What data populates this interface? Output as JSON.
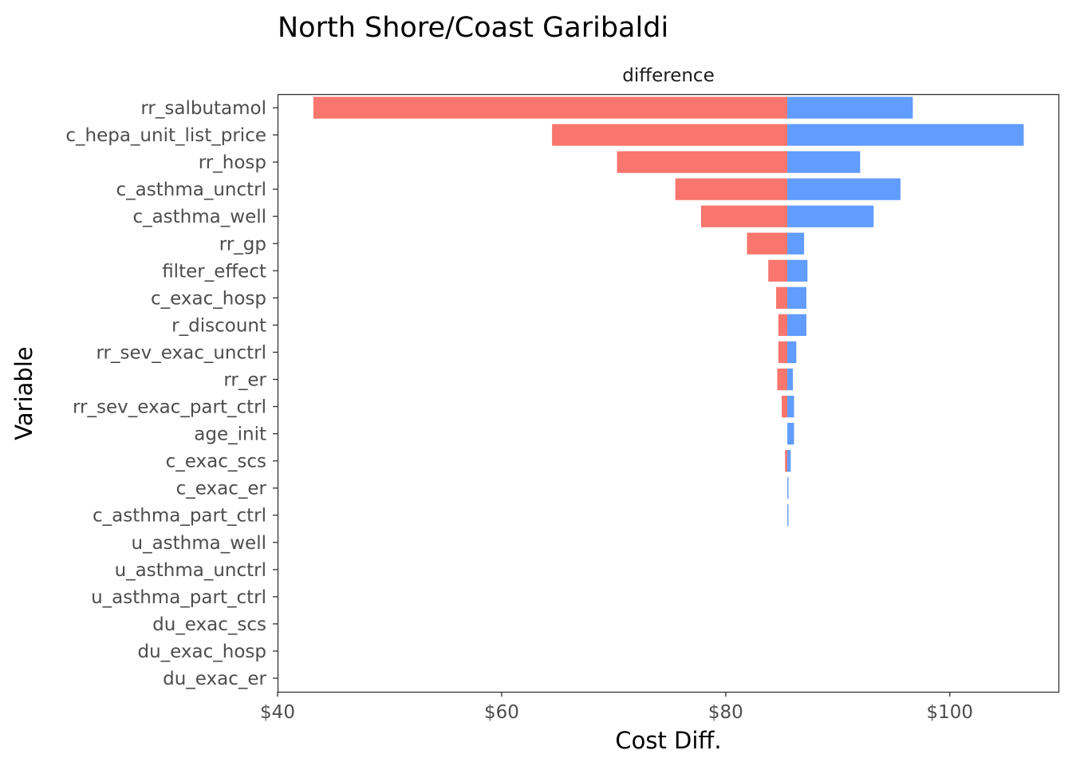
{
  "colors": {
    "low": "#F8766D",
    "high": "#619CFF",
    "panel_border": "#333333",
    "tick": "#333333"
  },
  "chart_data": {
    "type": "bar",
    "subtype": "tornado",
    "title": "North Shore/Coast Garibaldi",
    "facet_label": "difference",
    "xlabel": "Cost Diff.",
    "ylabel": "Variable",
    "xlim": [
      40,
      109.7
    ],
    "x_ticks": [
      40,
      60,
      80,
      100
    ],
    "x_tick_labels": [
      "$40",
      "$60",
      "$80",
      "$100"
    ],
    "base_value": 85.5,
    "grid": false,
    "legend": "none",
    "categories": [
      "rr_salbutamol",
      "c_hepa_unit_list_price",
      "rr_hosp",
      "c_asthma_unctrl",
      "c_asthma_well",
      "rr_gp",
      "filter_effect",
      "c_exac_hosp",
      "r_discount",
      "rr_sev_exac_unctrl",
      "rr_er",
      "rr_sev_exac_part_ctrl",
      "age_init",
      "c_exac_scs",
      "c_exac_er",
      "c_asthma_part_ctrl",
      "u_asthma_well",
      "u_asthma_unctrl",
      "u_asthma_part_ctrl",
      "du_exac_scs",
      "du_exac_hosp",
      "du_exac_er"
    ],
    "series": [
      {
        "values": [
          43.2,
          64.5,
          70.3,
          75.5,
          77.8,
          81.9,
          83.8,
          84.5,
          84.7,
          84.7,
          84.6,
          85.0,
          85.5,
          85.3,
          85.5,
          85.5,
          85.5,
          85.5,
          85.5,
          85.5,
          85.5,
          85.5
        ]
      },
      {
        "values": [
          96.7,
          106.6,
          92.0,
          95.6,
          93.2,
          87.0,
          87.3,
          87.2,
          87.2,
          86.3,
          86.0,
          86.1,
          86.1,
          85.8,
          85.6,
          85.6,
          85.5,
          85.5,
          85.5,
          85.5,
          85.5,
          85.5
        ]
      }
    ]
  }
}
